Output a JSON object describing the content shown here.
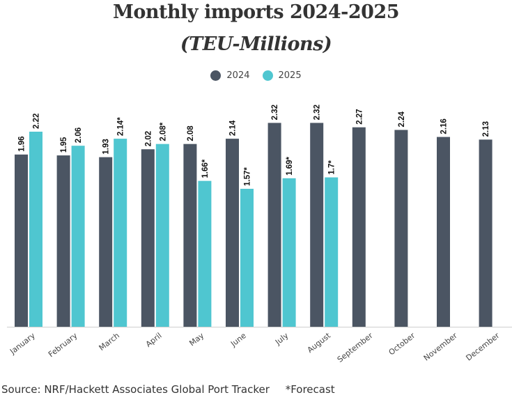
{
  "chart_data": {
    "type": "bar",
    "title": "Monthly imports 2024-2025",
    "subtitle": "(TEU-Millions)",
    "categories": [
      "January",
      "February",
      "March",
      "April",
      "May",
      "June",
      "July",
      "August",
      "September",
      "October",
      "November",
      "December"
    ],
    "series": [
      {
        "name": "2024",
        "color": "#4b5563",
        "values": [
          1.96,
          1.95,
          1.93,
          2.02,
          2.08,
          2.14,
          2.32,
          2.32,
          2.27,
          2.24,
          2.16,
          2.13
        ],
        "labels": [
          "1.96",
          "1.95",
          "1.93",
          "2.02",
          "2.08",
          "2.14",
          "2.32",
          "2.32",
          "2.27",
          "2.24",
          "2.16",
          "2.13"
        ]
      },
      {
        "name": "2025",
        "color": "#4fc6d0",
        "values": [
          2.22,
          2.06,
          2.14,
          2.08,
          1.66,
          1.57,
          1.69,
          1.7,
          null,
          null,
          null,
          null
        ],
        "labels": [
          "2.22",
          "2.06",
          "2.14*",
          "2.08*",
          "1.66*",
          "1.57*",
          "1.69*",
          "1.7*",
          null,
          null,
          null,
          null
        ]
      }
    ],
    "ylim": [
      0,
      2.45
    ],
    "grid": false,
    "legend_position": "top-center",
    "xlabel": "",
    "ylabel": ""
  },
  "footer": {
    "source": "Source: NRF/Hackett Associates Global Port Tracker",
    "note": "*Forecast"
  }
}
